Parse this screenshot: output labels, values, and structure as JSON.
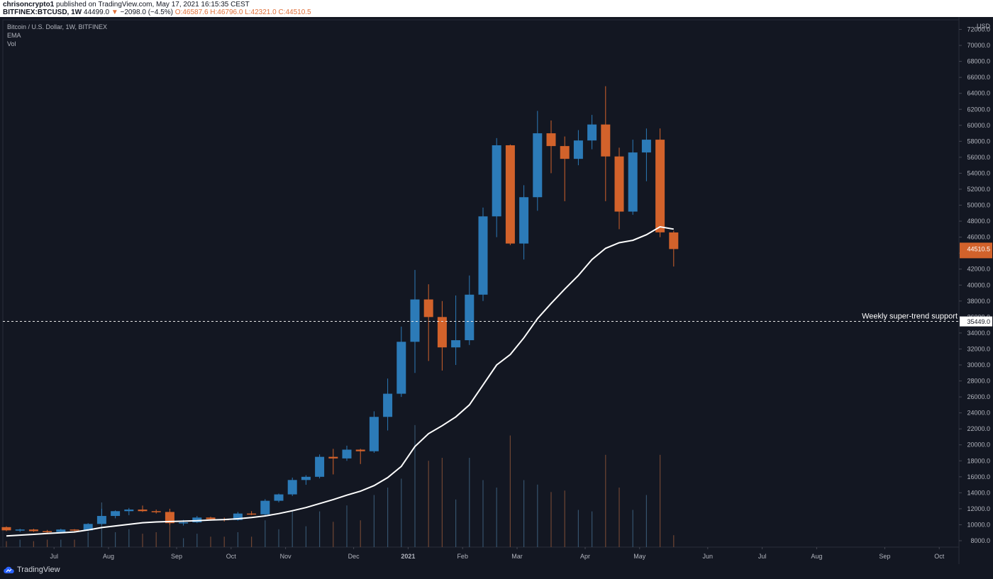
{
  "header": {
    "author": "chrisoncrypto1",
    "published": " published on TradingView.com, May 17, 2021 16:15:35 CEST",
    "symbol": "BITFINEX:BTCUSD, 1W",
    "last": "44499.0",
    "change": "−2098.0 (−4.5%)",
    "ohlc": "O:46587.6 H:46796.0 L:42321.0 C:44510.5",
    "change_arrow": "▼"
  },
  "legend": {
    "title": "Bitcoin / U.S. Dollar, 1W, BITFINEX",
    "ema": "EMA",
    "vol": "Vol"
  },
  "footer": {
    "brand": "TradingView",
    "logo_icon": "tradingview-cloud-icon"
  },
  "colors": {
    "background": "#131722",
    "up": "#2c7bb8",
    "down": "#d2622b",
    "ema": "#ffffff",
    "grid": "#1e2230",
    "axis_text": "#b2b5be"
  },
  "chart_data": {
    "type": "candlestick",
    "title": "Bitcoin / U.S. Dollar, 1W, BITFINEX",
    "y_axis_unit": "USD",
    "ylim": [
      7200,
      73200
    ],
    "yticks": [
      8000,
      10000,
      12000,
      14000,
      16000,
      18000,
      20000,
      22000,
      24000,
      26000,
      28000,
      30000,
      32000,
      34000,
      36000,
      38000,
      40000,
      42000,
      44000,
      46000,
      48000,
      50000,
      52000,
      54000,
      56000,
      58000,
      60000,
      62000,
      64000,
      66000,
      68000,
      70000,
      72000
    ],
    "ytick_labels": [
      "8000.0",
      "10000.0",
      "12000.0",
      "14000.0",
      "16000.0",
      "18000.0",
      "20000.0",
      "22000.0",
      "24000.0",
      "26000.0",
      "28000.0",
      "30000.0",
      "32000.0",
      "34000.0",
      "36000.0",
      "38000.0",
      "40000.0",
      "42000.0",
      "44000.0",
      "46000.0",
      "48000.0",
      "50000.0",
      "52000.0",
      "54000.0",
      "56000.0",
      "58000.0",
      "60000.0",
      "62000.0",
      "64000.0",
      "66000.0",
      "68000.0",
      "70000.0",
      "72000.0"
    ],
    "x_month_labels": [
      {
        "label": "Jul",
        "week": 3.5
      },
      {
        "label": "Aug",
        "week": 7.5
      },
      {
        "label": "Sep",
        "week": 12.5
      },
      {
        "label": "Oct",
        "week": 16.5
      },
      {
        "label": "Nov",
        "week": 20.5
      },
      {
        "label": "Dec",
        "week": 25.5
      },
      {
        "label": "2021",
        "week": 29.5
      },
      {
        "label": "Feb",
        "week": 33.5
      },
      {
        "label": "Mar",
        "week": 37.5
      },
      {
        "label": "Apr",
        "week": 42.5
      },
      {
        "label": "May",
        "week": 46.5
      },
      {
        "label": "Jun",
        "week": 51.5
      },
      {
        "label": "Jul",
        "week": 55.5
      },
      {
        "label": "Aug",
        "week": 59.5
      },
      {
        "label": "Sep",
        "week": 64.5
      },
      {
        "label": "Oct",
        "week": 68.5
      }
    ],
    "candles": [
      {
        "o": 9700,
        "h": 9800,
        "l": 9200,
        "c": 9300
      },
      {
        "o": 9300,
        "h": 9500,
        "l": 9100,
        "c": 9400
      },
      {
        "o": 9400,
        "h": 9500,
        "l": 9100,
        "c": 9200
      },
      {
        "o": 9200,
        "h": 9350,
        "l": 9000,
        "c": 9100
      },
      {
        "o": 9100,
        "h": 9500,
        "l": 9000,
        "c": 9400
      },
      {
        "o": 9400,
        "h": 9450,
        "l": 9200,
        "c": 9300
      },
      {
        "o": 9300,
        "h": 10200,
        "l": 9200,
        "c": 10100
      },
      {
        "o": 10100,
        "h": 12000,
        "l": 10000,
        "c": 11100
      },
      {
        "o": 11100,
        "h": 11800,
        "l": 10800,
        "c": 11700
      },
      {
        "o": 11700,
        "h": 12100,
        "l": 11200,
        "c": 11900
      },
      {
        "o": 11900,
        "h": 12400,
        "l": 11600,
        "c": 11700
      },
      {
        "o": 11700,
        "h": 11900,
        "l": 11400,
        "c": 11600
      },
      {
        "o": 11600,
        "h": 12000,
        "l": 10000,
        "c": 10200
      },
      {
        "o": 10200,
        "h": 10600,
        "l": 9900,
        "c": 10300
      },
      {
        "o": 10300,
        "h": 11100,
        "l": 10200,
        "c": 10900
      },
      {
        "o": 10900,
        "h": 11000,
        "l": 10500,
        "c": 10700
      },
      {
        "o": 10700,
        "h": 10900,
        "l": 10400,
        "c": 10600
      },
      {
        "o": 10600,
        "h": 11600,
        "l": 10500,
        "c": 11400
      },
      {
        "o": 11400,
        "h": 11700,
        "l": 11200,
        "c": 11300
      },
      {
        "o": 11300,
        "h": 13200,
        "l": 11200,
        "c": 13000
      },
      {
        "o": 13000,
        "h": 13900,
        "l": 12800,
        "c": 13800
      },
      {
        "o": 13800,
        "h": 15900,
        "l": 13600,
        "c": 15600
      },
      {
        "o": 15600,
        "h": 16200,
        "l": 15000,
        "c": 16000
      },
      {
        "o": 16000,
        "h": 18800,
        "l": 15800,
        "c": 18500
      },
      {
        "o": 18500,
        "h": 19500,
        "l": 16300,
        "c": 18300
      },
      {
        "o": 18300,
        "h": 19900,
        "l": 18000,
        "c": 19400
      },
      {
        "o": 19400,
        "h": 19500,
        "l": 17600,
        "c": 19200
      },
      {
        "o": 19200,
        "h": 24200,
        "l": 19000,
        "c": 23500
      },
      {
        "o": 23500,
        "h": 28300,
        "l": 21800,
        "c": 26400
      },
      {
        "o": 26400,
        "h": 34800,
        "l": 26000,
        "c": 32900
      },
      {
        "o": 32900,
        "h": 41900,
        "l": 29000,
        "c": 38200
      },
      {
        "o": 38200,
        "h": 40100,
        "l": 30500,
        "c": 36000
      },
      {
        "o": 36000,
        "h": 38000,
        "l": 29300,
        "c": 32200
      },
      {
        "o": 32200,
        "h": 38700,
        "l": 30000,
        "c": 33100
      },
      {
        "o": 33100,
        "h": 41200,
        "l": 32500,
        "c": 38800
      },
      {
        "o": 38800,
        "h": 49700,
        "l": 38000,
        "c": 48600
      },
      {
        "o": 48600,
        "h": 58400,
        "l": 46000,
        "c": 57500
      },
      {
        "o": 57500,
        "h": 57600,
        "l": 45000,
        "c": 45200
      },
      {
        "o": 45200,
        "h": 52500,
        "l": 43200,
        "c": 51000
      },
      {
        "o": 51000,
        "h": 61800,
        "l": 49300,
        "c": 59000
      },
      {
        "o": 59000,
        "h": 60600,
        "l": 54000,
        "c": 57400
      },
      {
        "o": 57400,
        "h": 58600,
        "l": 50500,
        "c": 55800
      },
      {
        "o": 55800,
        "h": 59400,
        "l": 55000,
        "c": 58100
      },
      {
        "o": 58100,
        "h": 61300,
        "l": 57000,
        "c": 60100
      },
      {
        "o": 60100,
        "h": 64900,
        "l": 50500,
        "c": 56100
      },
      {
        "o": 56100,
        "h": 57200,
        "l": 47000,
        "c": 49200
      },
      {
        "o": 49200,
        "h": 58200,
        "l": 48800,
        "c": 56600
      },
      {
        "o": 56600,
        "h": 59600,
        "l": 53000,
        "c": 58200
      },
      {
        "o": 58200,
        "h": 59600,
        "l": 46000,
        "c": 46600
      },
      {
        "o": 46587.6,
        "h": 46796.0,
        "l": 42321.0,
        "c": 44510.5
      }
    ],
    "volume_scale_max": 1.0,
    "volumes": [
      0.04,
      0.05,
      0.04,
      0.05,
      0.05,
      0.05,
      0.1,
      0.3,
      0.1,
      0.12,
      0.09,
      0.1,
      0.16,
      0.06,
      0.09,
      0.07,
      0.07,
      0.1,
      0.07,
      0.18,
      0.12,
      0.25,
      0.14,
      0.24,
      0.17,
      0.28,
      0.18,
      0.35,
      0.4,
      0.46,
      0.82,
      0.58,
      0.6,
      0.32,
      0.6,
      0.45,
      0.4,
      0.75,
      0.45,
      0.42,
      0.37,
      0.38,
      0.25,
      0.24,
      0.62,
      0.4,
      0.25,
      0.35,
      0.62,
      0.08
    ],
    "ema": [
      8600,
      8700,
      8800,
      8900,
      9000,
      9100,
      9350,
      9650,
      9850,
      10050,
      10250,
      10350,
      10400,
      10450,
      10500,
      10600,
      10650,
      10750,
      10900,
      11100,
      11400,
      11750,
      12150,
      12650,
      13150,
      13700,
      14200,
      14900,
      15900,
      17300,
      19800,
      21400,
      22400,
      23500,
      25000,
      27500,
      30000,
      31300,
      33400,
      35800,
      37700,
      39500,
      41200,
      43200,
      44600,
      45300,
      45600,
      46300,
      47300,
      47000
    ],
    "ema_values": "approximate",
    "annotations": [
      {
        "type": "hline",
        "value": 35449.0,
        "label": "Weekly super-trend support",
        "style": "dashed",
        "price_tag": "35449.0"
      }
    ],
    "last_price_tag": "44510.5",
    "currency_tag": "USD",
    "grid": false,
    "legend_position": "top-left"
  }
}
